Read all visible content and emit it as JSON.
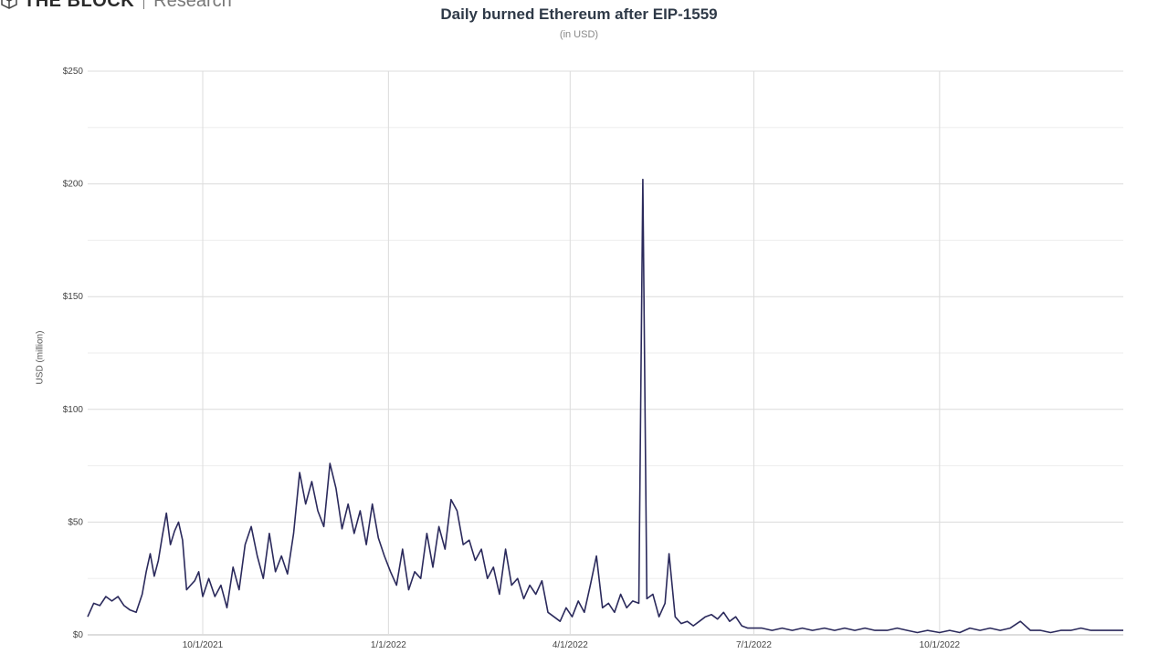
{
  "brand": {
    "name": "THE BLOCK",
    "sub": "Research"
  },
  "chart_data": {
    "type": "line",
    "title": "Daily burned Ethereum after EIP-1559",
    "subtitle": "(in USD)",
    "xlabel": "",
    "ylabel": "USD (million)",
    "x_range": [
      "2021-08-05",
      "2022-12-31"
    ],
    "ylim": [
      0,
      250
    ],
    "y_ticks": [
      0,
      50,
      100,
      150,
      200,
      250
    ],
    "y_tick_labels": [
      "$0",
      "$50",
      "$100",
      "$150",
      "$200",
      "$250"
    ],
    "x_ticks": [
      "2021-10-01",
      "2022-01-01",
      "2022-04-01",
      "2022-07-01",
      "2022-10-01"
    ],
    "x_tick_labels": [
      "10/1/2021",
      "1/1/2022",
      "4/1/2022",
      "7/1/2022",
      "10/1/2022"
    ],
    "grid": true,
    "line_color": "#2b2a5c",
    "series": [
      {
        "name": "",
        "points": [
          [
            "2021-08-05",
            8
          ],
          [
            "2021-08-08",
            14
          ],
          [
            "2021-08-11",
            13
          ],
          [
            "2021-08-14",
            17
          ],
          [
            "2021-08-17",
            15
          ],
          [
            "2021-08-20",
            17
          ],
          [
            "2021-08-23",
            13
          ],
          [
            "2021-08-26",
            11
          ],
          [
            "2021-08-29",
            10
          ],
          [
            "2021-09-01",
            18
          ],
          [
            "2021-09-03",
            28
          ],
          [
            "2021-09-05",
            36
          ],
          [
            "2021-09-07",
            26
          ],
          [
            "2021-09-09",
            33
          ],
          [
            "2021-09-11",
            44
          ],
          [
            "2021-09-13",
            54
          ],
          [
            "2021-09-15",
            40
          ],
          [
            "2021-09-17",
            46
          ],
          [
            "2021-09-19",
            50
          ],
          [
            "2021-09-21",
            42
          ],
          [
            "2021-09-23",
            20
          ],
          [
            "2021-09-25",
            22
          ],
          [
            "2021-09-27",
            24
          ],
          [
            "2021-09-29",
            28
          ],
          [
            "2021-10-01",
            17
          ],
          [
            "2021-10-04",
            25
          ],
          [
            "2021-10-07",
            17
          ],
          [
            "2021-10-10",
            22
          ],
          [
            "2021-10-13",
            12
          ],
          [
            "2021-10-16",
            30
          ],
          [
            "2021-10-19",
            20
          ],
          [
            "2021-10-22",
            40
          ],
          [
            "2021-10-25",
            48
          ],
          [
            "2021-10-28",
            35
          ],
          [
            "2021-10-31",
            25
          ],
          [
            "2021-11-03",
            45
          ],
          [
            "2021-11-06",
            28
          ],
          [
            "2021-11-09",
            35
          ],
          [
            "2021-11-12",
            27
          ],
          [
            "2021-11-15",
            45
          ],
          [
            "2021-11-18",
            72
          ],
          [
            "2021-11-21",
            58
          ],
          [
            "2021-11-24",
            68
          ],
          [
            "2021-11-27",
            55
          ],
          [
            "2021-11-30",
            48
          ],
          [
            "2021-12-03",
            76
          ],
          [
            "2021-12-06",
            65
          ],
          [
            "2021-12-09",
            47
          ],
          [
            "2021-12-12",
            58
          ],
          [
            "2021-12-15",
            45
          ],
          [
            "2021-12-18",
            55
          ],
          [
            "2021-12-21",
            40
          ],
          [
            "2021-12-24",
            58
          ],
          [
            "2021-12-27",
            43
          ],
          [
            "2021-12-30",
            35
          ],
          [
            "2022-01-02",
            28
          ],
          [
            "2022-01-05",
            22
          ],
          [
            "2022-01-08",
            38
          ],
          [
            "2022-01-11",
            20
          ],
          [
            "2022-01-14",
            28
          ],
          [
            "2022-01-17",
            25
          ],
          [
            "2022-01-20",
            45
          ],
          [
            "2022-01-23",
            30
          ],
          [
            "2022-01-26",
            48
          ],
          [
            "2022-01-29",
            38
          ],
          [
            "2022-02-01",
            60
          ],
          [
            "2022-02-04",
            55
          ],
          [
            "2022-02-07",
            40
          ],
          [
            "2022-02-10",
            42
          ],
          [
            "2022-02-13",
            33
          ],
          [
            "2022-02-16",
            38
          ],
          [
            "2022-02-19",
            25
          ],
          [
            "2022-02-22",
            30
          ],
          [
            "2022-02-25",
            18
          ],
          [
            "2022-02-28",
            38
          ],
          [
            "2022-03-03",
            22
          ],
          [
            "2022-03-06",
            25
          ],
          [
            "2022-03-09",
            16
          ],
          [
            "2022-03-12",
            22
          ],
          [
            "2022-03-15",
            18
          ],
          [
            "2022-03-18",
            24
          ],
          [
            "2022-03-21",
            10
          ],
          [
            "2022-03-24",
            8
          ],
          [
            "2022-03-27",
            6
          ],
          [
            "2022-03-30",
            12
          ],
          [
            "2022-04-02",
            8
          ],
          [
            "2022-04-05",
            15
          ],
          [
            "2022-04-08",
            10
          ],
          [
            "2022-04-11",
            22
          ],
          [
            "2022-04-14",
            35
          ],
          [
            "2022-04-17",
            12
          ],
          [
            "2022-04-20",
            14
          ],
          [
            "2022-04-23",
            10
          ],
          [
            "2022-04-26",
            18
          ],
          [
            "2022-04-29",
            12
          ],
          [
            "2022-05-02",
            15
          ],
          [
            "2022-05-05",
            14
          ],
          [
            "2022-05-07",
            202
          ],
          [
            "2022-05-09",
            16
          ],
          [
            "2022-05-12",
            18
          ],
          [
            "2022-05-15",
            8
          ],
          [
            "2022-05-18",
            14
          ],
          [
            "2022-05-20",
            36
          ],
          [
            "2022-05-23",
            8
          ],
          [
            "2022-05-26",
            5
          ],
          [
            "2022-05-29",
            6
          ],
          [
            "2022-06-01",
            4
          ],
          [
            "2022-06-04",
            6
          ],
          [
            "2022-06-07",
            8
          ],
          [
            "2022-06-10",
            9
          ],
          [
            "2022-06-13",
            7
          ],
          [
            "2022-06-16",
            10
          ],
          [
            "2022-06-19",
            6
          ],
          [
            "2022-06-22",
            8
          ],
          [
            "2022-06-25",
            4
          ],
          [
            "2022-06-28",
            3
          ],
          [
            "2022-07-01",
            3
          ],
          [
            "2022-07-05",
            3
          ],
          [
            "2022-07-10",
            2
          ],
          [
            "2022-07-15",
            3
          ],
          [
            "2022-07-20",
            2
          ],
          [
            "2022-07-25",
            3
          ],
          [
            "2022-07-30",
            2
          ],
          [
            "2022-08-05",
            3
          ],
          [
            "2022-08-10",
            2
          ],
          [
            "2022-08-15",
            3
          ],
          [
            "2022-08-20",
            2
          ],
          [
            "2022-08-25",
            3
          ],
          [
            "2022-08-30",
            2
          ],
          [
            "2022-09-05",
            2
          ],
          [
            "2022-09-10",
            3
          ],
          [
            "2022-09-15",
            2
          ],
          [
            "2022-09-20",
            1
          ],
          [
            "2022-09-25",
            2
          ],
          [
            "2022-10-01",
            1
          ],
          [
            "2022-10-06",
            2
          ],
          [
            "2022-10-11",
            1
          ],
          [
            "2022-10-16",
            3
          ],
          [
            "2022-10-21",
            2
          ],
          [
            "2022-10-26",
            3
          ],
          [
            "2022-10-31",
            2
          ],
          [
            "2022-11-05",
            3
          ],
          [
            "2022-11-10",
            6
          ],
          [
            "2022-11-15",
            2
          ],
          [
            "2022-11-20",
            2
          ],
          [
            "2022-11-25",
            1
          ],
          [
            "2022-11-30",
            2
          ],
          [
            "2022-12-05",
            2
          ],
          [
            "2022-12-10",
            3
          ],
          [
            "2022-12-15",
            2
          ],
          [
            "2022-12-20",
            2
          ],
          [
            "2022-12-25",
            2
          ],
          [
            "2022-12-31",
            2
          ]
        ]
      }
    ]
  }
}
